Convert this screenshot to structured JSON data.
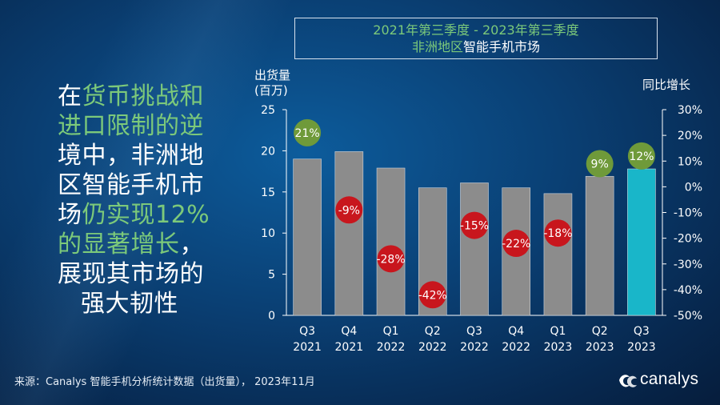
{
  "title": {
    "line1": "2021年第三季度 - 2023年第三季度",
    "line2_highlight": "非洲地区",
    "line2_rest": "智能手机市场"
  },
  "headline": {
    "l1a": "在",
    "l1b": "货币挑战和",
    "l2": "进口限制的逆",
    "l3": "境中，非洲地",
    "l4": "区智能手机市",
    "l5a": "场",
    "l5b": "仍实现12%",
    "l6a": "的显著增长",
    "l6b": "，",
    "l7": "展现其市场的",
    "l8": "强大韧性"
  },
  "axes": {
    "left_label_line1": "出货量",
    "left_label_line2": "(百万)",
    "right_label": "同比增长"
  },
  "source": "来源：Canalys 智能手机分析统计数据（出货量），  2023年11月",
  "logo": {
    "text": "canalys"
  },
  "colors": {
    "bar": "#8c8c8c",
    "bar_highlight": "#19b6c9",
    "positive": "#6f9a3a",
    "negative": "#c8161d",
    "accent_text": "#7cc97a"
  },
  "chart_data": {
    "type": "bar",
    "categories": [
      [
        "Q3",
        "2021"
      ],
      [
        "Q4",
        "2021"
      ],
      [
        "Q1",
        "2022"
      ],
      [
        "Q2",
        "2022"
      ],
      [
        "Q3",
        "2022"
      ],
      [
        "Q4",
        "2022"
      ],
      [
        "Q1",
        "2023"
      ],
      [
        "Q2",
        "2023"
      ],
      [
        "Q3",
        "2023"
      ]
    ],
    "series": [
      {
        "values": [
          19.0,
          19.9,
          17.9,
          15.5,
          16.1,
          15.5,
          14.8,
          16.9,
          17.8
        ]
      },
      {
        "values": [
          21,
          -9,
          -28,
          -42,
          -15,
          -22,
          -18,
          9,
          12
        ]
      }
    ],
    "yoy_labels": [
      "21%",
      "-9%",
      "-28%",
      "-42%",
      "-15%",
      "-22%",
      "-18%",
      "9%",
      "12%"
    ],
    "highlight_index": 8,
    "ylim": [
      0,
      25
    ],
    "y_ticks": [
      "0",
      "5",
      "10",
      "15",
      "20",
      "25"
    ],
    "y2lim": [
      -50,
      30
    ],
    "y2_ticks": [
      "-50%",
      "-40%",
      "-30%",
      "-20%",
      "-10%",
      "0%",
      "10%",
      "20%",
      "30%"
    ],
    "grid": false
  }
}
